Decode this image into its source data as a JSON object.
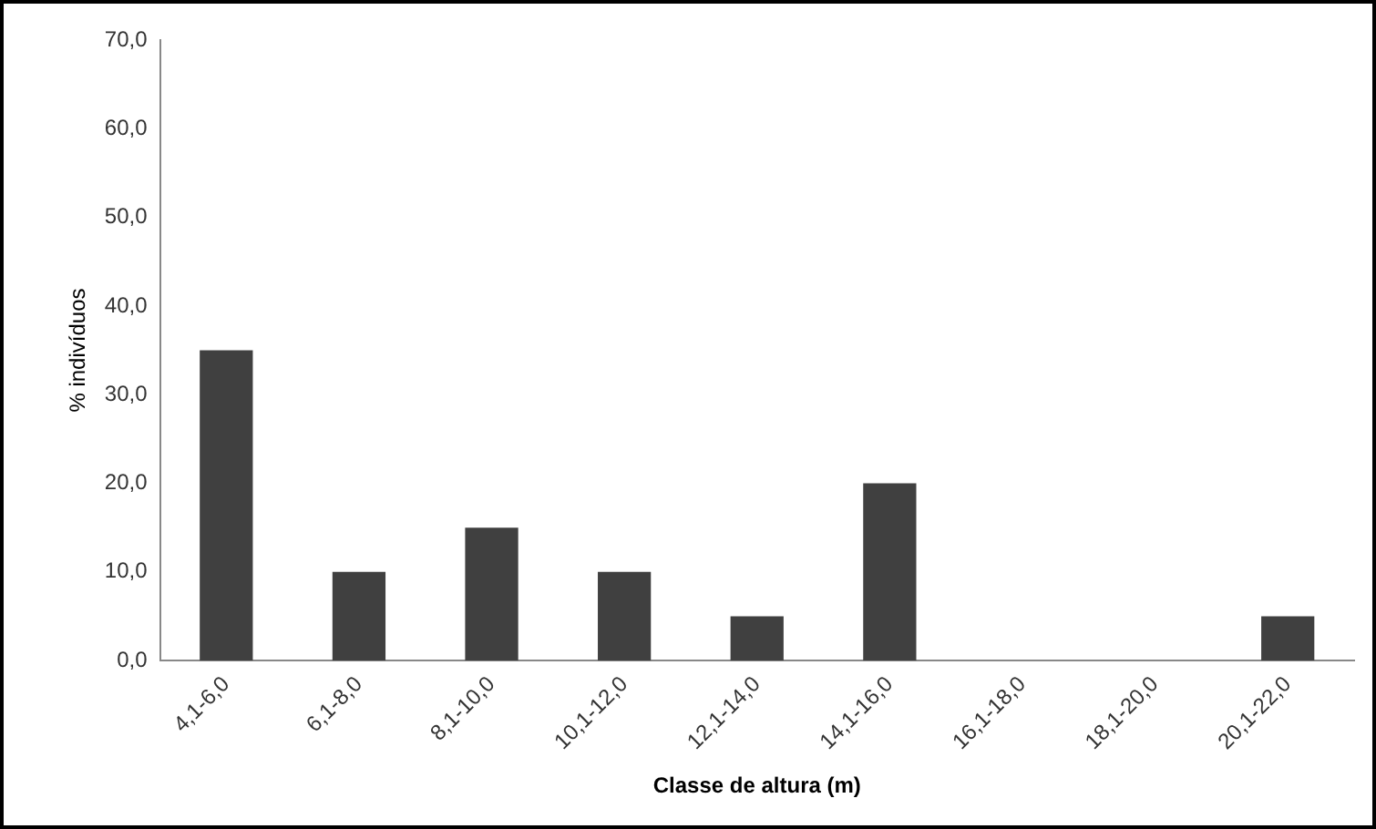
{
  "chart_data": {
    "type": "bar",
    "xlabel": "Classe de altura (m)",
    "ylabel": "% indivíduos",
    "categories": [
      "4,1-6,0",
      "6,1-8,0",
      "8,1-10,0",
      "10,1-12,0",
      "12,1-14,0",
      "14,1-16,0",
      "16,1-18,0",
      "18,1-20,0",
      "20,1-22,0"
    ],
    "values": [
      35,
      10,
      15,
      10,
      5,
      20,
      0,
      0,
      5
    ],
    "color": "#404040",
    "ylim": [
      0,
      70
    ],
    "yticks": [
      {
        "value": 0,
        "label": "0,0"
      },
      {
        "value": 10,
        "label": "10,0"
      },
      {
        "value": 20,
        "label": "20,0"
      },
      {
        "value": 30,
        "label": "30,0"
      },
      {
        "value": 40,
        "label": "40,0"
      },
      {
        "value": 50,
        "label": "50,0"
      },
      {
        "value": 60,
        "label": "60,0"
      },
      {
        "value": 70,
        "label": "70,0"
      }
    ],
    "grid": false,
    "legend": false
  }
}
